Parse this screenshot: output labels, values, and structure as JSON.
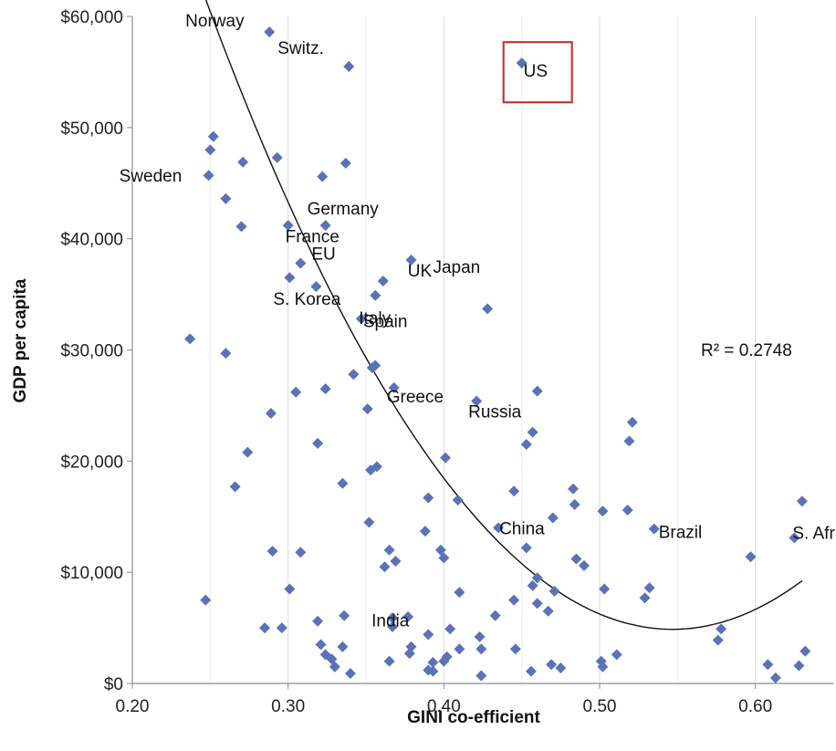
{
  "chart_data": {
    "type": "scatter",
    "xlabel": "GINI co-efficient",
    "ylabel": "GDP per capita",
    "xlim": [
      0.2,
      0.65
    ],
    "ylim": [
      0,
      60000
    ],
    "x_ticks": [
      0.2,
      0.3,
      0.4,
      0.5,
      0.6
    ],
    "x_tick_labels": [
      "0.20",
      "0.30",
      "0.40",
      "0.50",
      "0.60"
    ],
    "y_ticks": [
      0,
      10000,
      20000,
      30000,
      40000,
      50000,
      60000
    ],
    "y_tick_labels": [
      "$0",
      "$10,000",
      "$20,000",
      "$30,000",
      "$40,000",
      "$50,000",
      "$60,000"
    ],
    "grid": "vertical",
    "marker_color": "#5b72b8",
    "trend_color": "#111111",
    "highlight_color": "#c0392b",
    "r_squared_label": "R² = 0.2748",
    "trendline": {
      "type": "polynomial",
      "coefficients": [
        193500,
        -690000,
        631000
      ],
      "x_range": [
        0.237,
        0.63
      ]
    },
    "highlight": {
      "label": "US",
      "x": 0.45,
      "y": 55800
    },
    "annotations": [
      {
        "label": "Norway",
        "x": 0.288,
        "y": 58600
      },
      {
        "label": "Switz.",
        "x": 0.339,
        "y": 55500
      },
      {
        "label": "Sweden",
        "x": 0.249,
        "y": 45700
      },
      {
        "label": "Germany",
        "x": 0.324,
        "y": 41200
      },
      {
        "label": "France",
        "x": 0.324,
        "y": 38700
      },
      {
        "label": "EU",
        "x": 0.308,
        "y": 37800
      },
      {
        "label": "UK",
        "x": 0.361,
        "y": 36200
      },
      {
        "label": "Japan",
        "x": 0.379,
        "y": 38100
      },
      {
        "label": "Italy",
        "x": 0.356,
        "y": 34900
      },
      {
        "label": "S. Korea",
        "x": 0.318,
        "y": 35700
      },
      {
        "label": "Spain",
        "x": 0.347,
        "y": 32800
      },
      {
        "label": "Greece",
        "x": 0.368,
        "y": 26600
      },
      {
        "label": "Russia",
        "x": 0.421,
        "y": 25400
      },
      {
        "label": "China",
        "x": 0.435,
        "y": 14000
      },
      {
        "label": "Brazil",
        "x": 0.535,
        "y": 13900
      },
      {
        "label": "S. Africa",
        "x": 0.625,
        "y": 13100
      },
      {
        "label": "India",
        "x": 0.336,
        "y": 6100
      }
    ],
    "points": [
      [
        0.288,
        58600
      ],
      [
        0.339,
        55500
      ],
      [
        0.45,
        55800
      ],
      [
        0.252,
        49200
      ],
      [
        0.25,
        48000
      ],
      [
        0.249,
        45700
      ],
      [
        0.271,
        46900
      ],
      [
        0.293,
        47300
      ],
      [
        0.337,
        46800
      ],
      [
        0.322,
        45600
      ],
      [
        0.26,
        43600
      ],
      [
        0.27,
        41100
      ],
      [
        0.3,
        41200
      ],
      [
        0.324,
        41200
      ],
      [
        0.308,
        37800
      ],
      [
        0.379,
        38100
      ],
      [
        0.301,
        36500
      ],
      [
        0.361,
        36200
      ],
      [
        0.318,
        35700
      ],
      [
        0.356,
        34900
      ],
      [
        0.347,
        32800
      ],
      [
        0.428,
        33700
      ],
      [
        0.237,
        31000
      ],
      [
        0.26,
        29700
      ],
      [
        0.354,
        28400
      ],
      [
        0.356,
        28600
      ],
      [
        0.342,
        27800
      ],
      [
        0.368,
        26600
      ],
      [
        0.46,
        26300
      ],
      [
        0.305,
        26200
      ],
      [
        0.324,
        26500
      ],
      [
        0.421,
        25400
      ],
      [
        0.351,
        24700
      ],
      [
        0.289,
        24300
      ],
      [
        0.521,
        23500
      ],
      [
        0.457,
        22600
      ],
      [
        0.319,
        21600
      ],
      [
        0.453,
        21500
      ],
      [
        0.519,
        21800
      ],
      [
        0.274,
        20800
      ],
      [
        0.401,
        20300
      ],
      [
        0.353,
        19200
      ],
      [
        0.357,
        19500
      ],
      [
        0.266,
        17700
      ],
      [
        0.335,
        18000
      ],
      [
        0.445,
        17300
      ],
      [
        0.483,
        17500
      ],
      [
        0.39,
        16700
      ],
      [
        0.409,
        16500
      ],
      [
        0.484,
        16100
      ],
      [
        0.63,
        16400
      ],
      [
        0.502,
        15500
      ],
      [
        0.518,
        15600
      ],
      [
        0.47,
        14900
      ],
      [
        0.352,
        14500
      ],
      [
        0.535,
        13900
      ],
      [
        0.388,
        13700
      ],
      [
        0.435,
        14000
      ],
      [
        0.597,
        11400
      ],
      [
        0.625,
        13100
      ],
      [
        0.453,
        12200
      ],
      [
        0.365,
        12000
      ],
      [
        0.398,
        12000
      ],
      [
        0.29,
        11900
      ],
      [
        0.308,
        11800
      ],
      [
        0.4,
        11300
      ],
      [
        0.485,
        11200
      ],
      [
        0.49,
        10600
      ],
      [
        0.362,
        10500
      ],
      [
        0.369,
        11000
      ],
      [
        0.46,
        9500
      ],
      [
        0.457,
        8800
      ],
      [
        0.301,
        8500
      ],
      [
        0.41,
        8200
      ],
      [
        0.503,
        8500
      ],
      [
        0.532,
        8600
      ],
      [
        0.471,
        8300
      ],
      [
        0.529,
        7700
      ],
      [
        0.247,
        7500
      ],
      [
        0.445,
        7500
      ],
      [
        0.46,
        7200
      ],
      [
        0.467,
        6500
      ],
      [
        0.433,
        6100
      ],
      [
        0.336,
        6100
      ],
      [
        0.367,
        5900
      ],
      [
        0.377,
        6000
      ],
      [
        0.319,
        5600
      ],
      [
        0.367,
        5100
      ],
      [
        0.39,
        4400
      ],
      [
        0.404,
        4900
      ],
      [
        0.285,
        5000
      ],
      [
        0.296,
        5000
      ],
      [
        0.578,
        4900
      ],
      [
        0.576,
        3900
      ],
      [
        0.423,
        4200
      ],
      [
        0.321,
        3500
      ],
      [
        0.335,
        3300
      ],
      [
        0.379,
        3300
      ],
      [
        0.41,
        3100
      ],
      [
        0.424,
        3100
      ],
      [
        0.446,
        3100
      ],
      [
        0.511,
        2600
      ],
      [
        0.632,
        2900
      ],
      [
        0.324,
        2600
      ],
      [
        0.328,
        2200
      ],
      [
        0.378,
        2700
      ],
      [
        0.402,
        2400
      ],
      [
        0.4,
        2000
      ],
      [
        0.365,
        2000
      ],
      [
        0.393,
        1900
      ],
      [
        0.33,
        1500
      ],
      [
        0.39,
        1200
      ],
      [
        0.393,
        1100
      ],
      [
        0.456,
        1100
      ],
      [
        0.469,
        1700
      ],
      [
        0.475,
        1400
      ],
      [
        0.501,
        2000
      ],
      [
        0.502,
        1500
      ],
      [
        0.608,
        1700
      ],
      [
        0.628,
        1600
      ],
      [
        0.34,
        900
      ],
      [
        0.424,
        700
      ],
      [
        0.613,
        500
      ]
    ]
  }
}
